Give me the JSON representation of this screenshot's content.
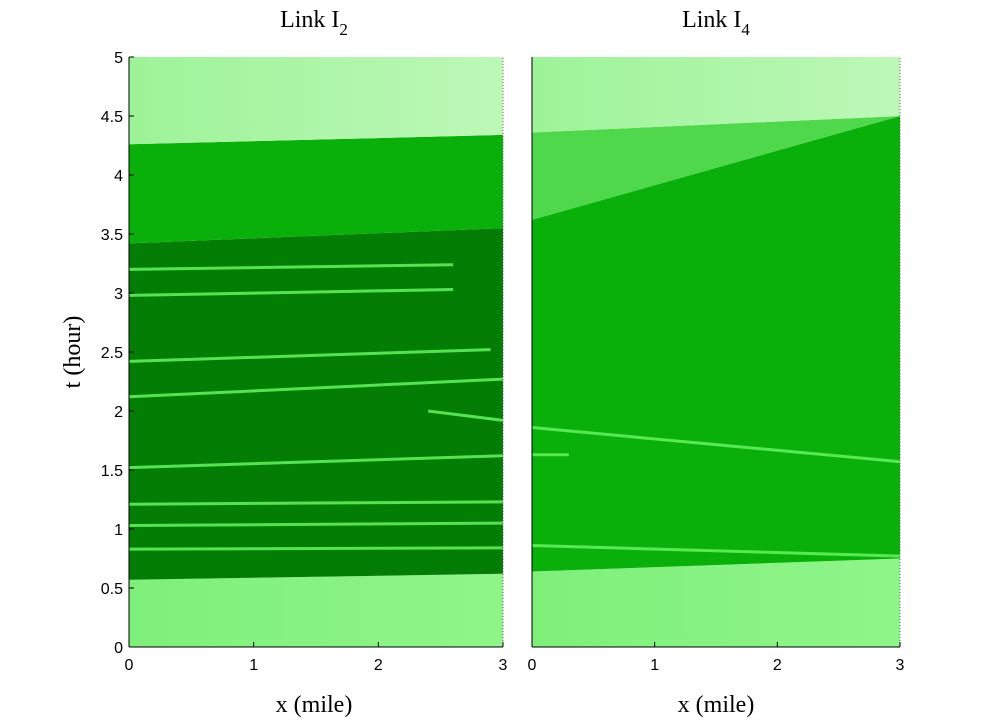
{
  "chart_data": [
    {
      "type": "heatmap",
      "title": "Link I",
      "title_subscript": "2",
      "xlabel": "x (mile)",
      "ylabel": "t (hour)",
      "xlim": [
        0,
        3
      ],
      "ylim": [
        0,
        5
      ],
      "xticks": [
        "0",
        "1",
        "2",
        "3"
      ],
      "yticks": [
        "0",
        "0.5",
        "1",
        "1.5",
        "2",
        "2.5",
        "3",
        "3.5",
        "4",
        "4.5",
        "5"
      ],
      "colormap": "green shades (light = free flow, dark = congested)",
      "regions": [
        {
          "level": "light",
          "polygon": [
            [
              0,
              0
            ],
            [
              3,
              0
            ],
            [
              3,
              0.62
            ],
            [
              0,
              0.57
            ]
          ]
        },
        {
          "level": "dark",
          "polygon": [
            [
              0,
              0.57
            ],
            [
              3,
              0.62
            ],
            [
              3,
              3.55
            ],
            [
              0,
              3.42
            ]
          ]
        },
        {
          "level": "medium",
          "polygon": [
            [
              0,
              3.42
            ],
            [
              3,
              3.55
            ],
            [
              3,
              4.34
            ],
            [
              0,
              4.26
            ]
          ]
        },
        {
          "level": "lightest",
          "polygon": [
            [
              0,
              4.26
            ],
            [
              3,
              4.34
            ],
            [
              3,
              5
            ],
            [
              0,
              5
            ]
          ]
        }
      ],
      "bands": [
        {
          "t0": 0.83,
          "t1": 0.84,
          "x_end": 3.0
        },
        {
          "t0": 1.03,
          "t1": 1.05,
          "x_end": 3.0
        },
        {
          "t0": 1.21,
          "t1": 1.23,
          "x_end": 3.0
        },
        {
          "t0": 1.52,
          "t1": 1.62,
          "x_end": 3.0
        },
        {
          "t0": 2.12,
          "t1": 2.27,
          "x_end": 3.0
        },
        {
          "t0": 2.42,
          "t1": 2.52,
          "x_end": 2.9
        },
        {
          "t0": 2.98,
          "t1": 3.03,
          "x_end": 2.6
        },
        {
          "t0": 3.2,
          "t1": 3.24,
          "x_end": 2.6
        },
        {
          "t0": 2.0,
          "t1": 1.92,
          "x_start": 2.4,
          "x_end": 3.0
        }
      ]
    },
    {
      "type": "heatmap",
      "title": "Link I",
      "title_subscript": "4",
      "xlabel": "x (mile)",
      "ylabel": "",
      "xlim": [
        0,
        3
      ],
      "ylim": [
        0,
        5
      ],
      "xticks": [
        "0",
        "1",
        "2",
        "3"
      ],
      "yticks": [],
      "colormap": "green shades (light = free flow, dark = congested)",
      "regions": [
        {
          "level": "light",
          "polygon": [
            [
              0,
              0
            ],
            [
              3,
              0
            ],
            [
              3,
              0.75
            ],
            [
              0,
              0.64
            ]
          ]
        },
        {
          "level": "medium",
          "polygon": [
            [
              0,
              0.64
            ],
            [
              3,
              0.75
            ],
            [
              3,
              4.5
            ],
            [
              0,
              3.62
            ],
            [
              0,
              4.36
            ]
          ]
        },
        {
          "level": "medium-light",
          "polygon": [
            [
              0,
              3.62
            ],
            [
              3,
              4.5
            ],
            [
              0,
              4.36
            ]
          ]
        },
        {
          "level": "lightest",
          "polygon": [
            [
              0,
              4.36
            ],
            [
              3,
              4.5
            ],
            [
              3,
              5
            ],
            [
              0,
              5
            ]
          ]
        }
      ],
      "bands": [
        {
          "t0": 1.86,
          "t1": 1.57,
          "x_end": 3.0
        },
        {
          "t0": 0.86,
          "t1": 0.77,
          "x_end": 3.0
        },
        {
          "t0": 1.63,
          "t1": 1.63,
          "x_end": 0.3
        }
      ]
    }
  ]
}
